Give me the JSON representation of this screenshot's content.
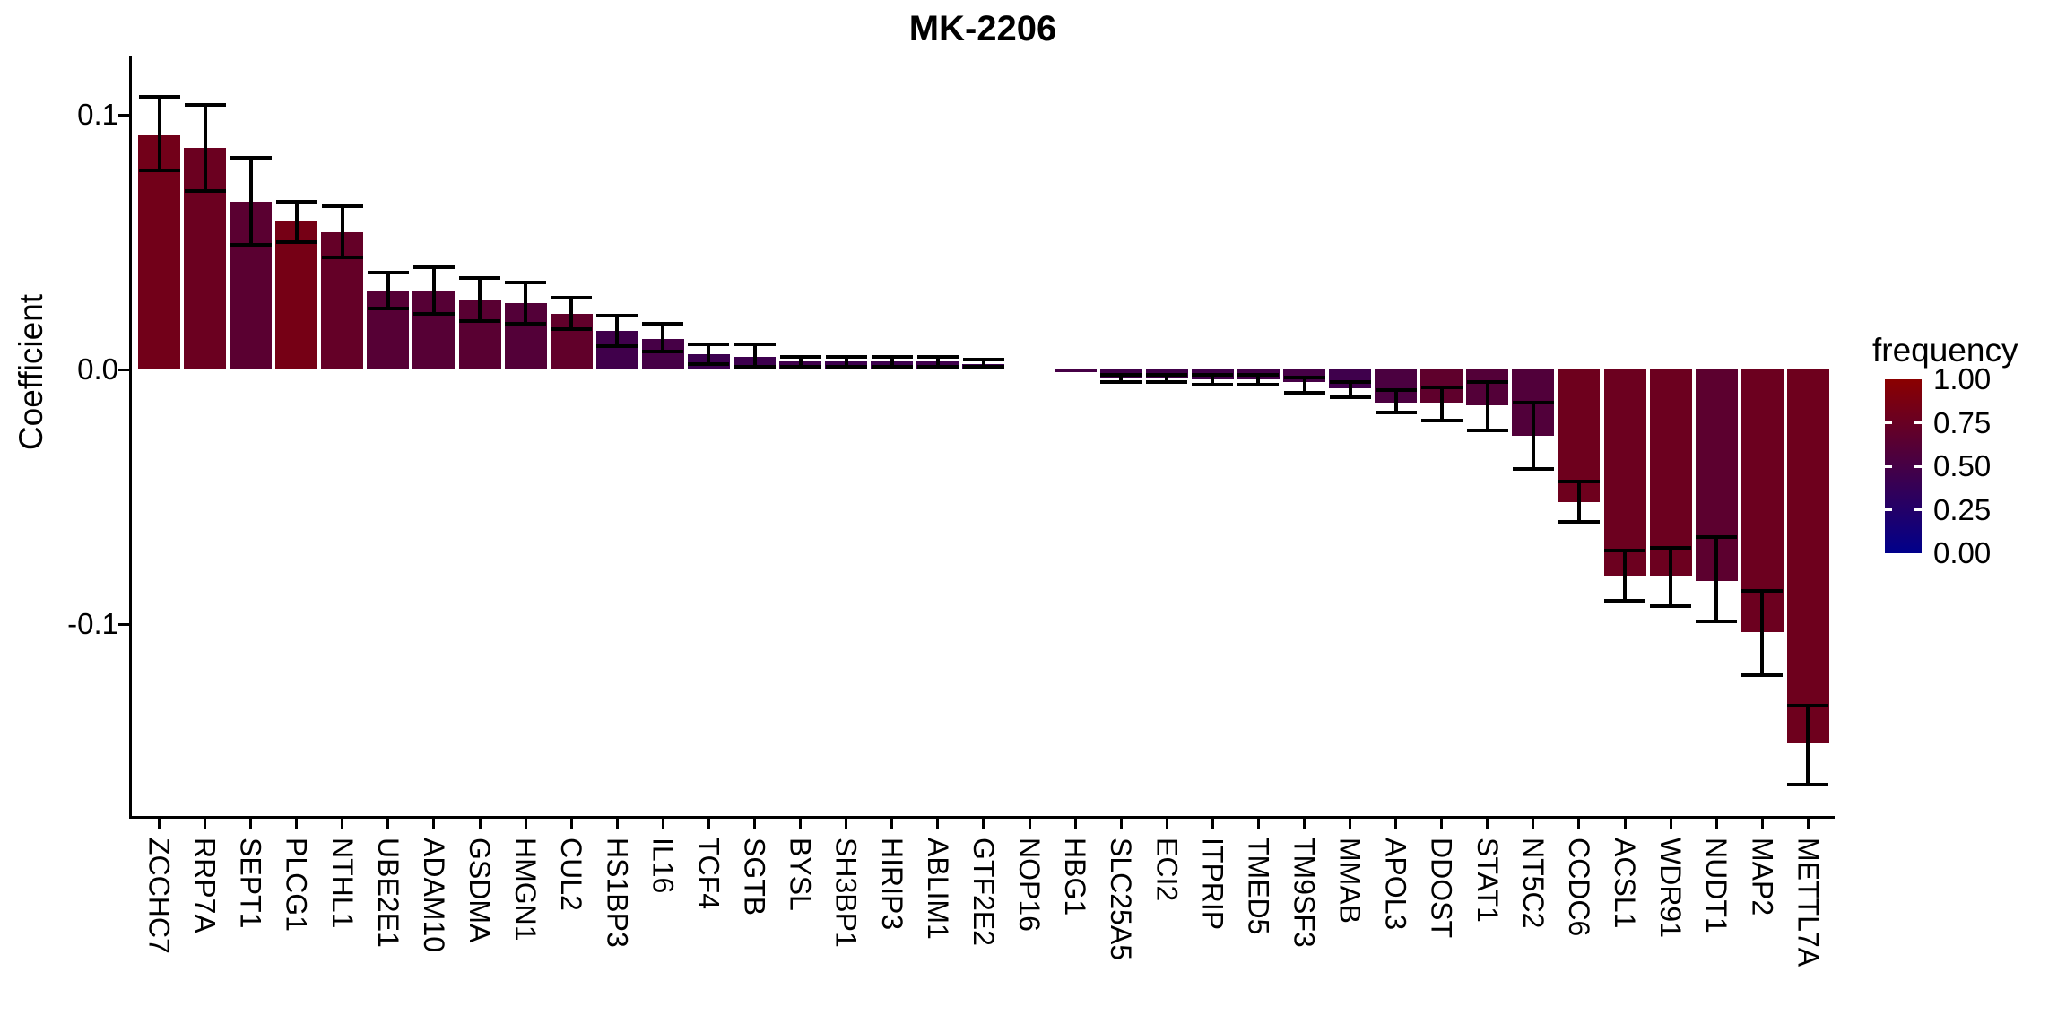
{
  "title": "MK-2206",
  "y_axis": {
    "label": "Coefficient",
    "tick_labels": [
      "0.1",
      "0.0",
      "-0.1"
    ],
    "tick_values": [
      0.1,
      0.0,
      -0.1
    ]
  },
  "legend": {
    "title": "frequency",
    "tick_labels": [
      "1.00",
      "0.75",
      "0.50",
      "0.25",
      "0.00"
    ],
    "tick_values": [
      1.0,
      0.75,
      0.5,
      0.25,
      0.0
    ],
    "high_color": "#8b0000",
    "low_color": "#00008b"
  },
  "chart_data": {
    "type": "bar",
    "title": "MK-2206",
    "xlabel": "",
    "ylabel": "Coefficient",
    "ylim": [
      -0.176,
      0.123
    ],
    "grid": false,
    "legend_position": "right",
    "categories": [
      "ZCCHC7",
      "RRP7A",
      "SEPT1",
      "PLCG1",
      "NTHL1",
      "UBE2E1",
      "ADAM10",
      "GSDMA",
      "HMGN1",
      "CUL2",
      "HS1BP3",
      "IL16",
      "TCF4",
      "SGTB",
      "BYSL",
      "SH3BP1",
      "HIRIP3",
      "ABLIM1",
      "GTF2E2",
      "NOP16",
      "HBG1",
      "SLC25A5",
      "ECI2",
      "ITPRIP",
      "TMED5",
      "TM9SF3",
      "MMAB",
      "APOL3",
      "DDOST",
      "STAT1",
      "NT5C2",
      "CCDC6",
      "ACSL1",
      "WDR91",
      "NUDT1",
      "MAP2",
      "METTL7A"
    ],
    "values": [
      0.092,
      0.087,
      0.066,
      0.058,
      0.054,
      0.031,
      0.031,
      0.027,
      0.026,
      0.022,
      0.015,
      0.012,
      0.006,
      0.005,
      0.003,
      0.003,
      0.003,
      0.003,
      0.002,
      0.0005,
      -0.001,
      -0.003,
      -0.003,
      -0.004,
      -0.004,
      -0.005,
      -0.0075,
      -0.013,
      -0.013,
      -0.014,
      -0.026,
      -0.052,
      -0.081,
      -0.081,
      -0.083,
      -0.103,
      -0.147
    ],
    "error_high": [
      0.107,
      0.104,
      0.083,
      0.066,
      0.064,
      0.038,
      0.04,
      0.036,
      0.034,
      0.028,
      0.021,
      0.018,
      0.01,
      0.01,
      0.005,
      0.005,
      0.005,
      0.005,
      0.004,
      0.0005,
      -0.001,
      -0.002,
      -0.002,
      -0.002,
      -0.002,
      -0.003,
      -0.005,
      -0.008,
      -0.007,
      -0.005,
      -0.013,
      -0.044,
      -0.071,
      -0.07,
      -0.066,
      -0.087,
      -0.132
    ],
    "error_low": [
      0.078,
      0.07,
      0.049,
      0.05,
      0.044,
      0.024,
      0.022,
      0.019,
      0.018,
      0.016,
      0.009,
      0.007,
      0.002,
      0.001,
      0.001,
      0.001,
      0.001,
      0.001,
      0.001,
      0.0005,
      -0.001,
      -0.005,
      -0.005,
      -0.006,
      -0.006,
      -0.009,
      -0.011,
      -0.017,
      -0.02,
      -0.024,
      -0.039,
      -0.06,
      -0.091,
      -0.093,
      -0.099,
      -0.12,
      -0.163
    ],
    "frequency": [
      0.82,
      0.77,
      0.65,
      0.85,
      0.72,
      0.62,
      0.62,
      0.64,
      0.6,
      0.7,
      0.46,
      0.5,
      0.43,
      0.44,
      0.45,
      0.44,
      0.44,
      0.45,
      0.44,
      0.5,
      0.5,
      0.47,
      0.47,
      0.47,
      0.48,
      0.5,
      0.45,
      0.54,
      0.68,
      0.6,
      0.58,
      0.79,
      0.78,
      0.78,
      0.66,
      0.78,
      0.79
    ],
    "color_scale": {
      "name": "frequency",
      "low": {
        "value": 0.0,
        "color": "#00008b"
      },
      "high": {
        "value": 1.0,
        "color": "#8b0000"
      }
    }
  }
}
